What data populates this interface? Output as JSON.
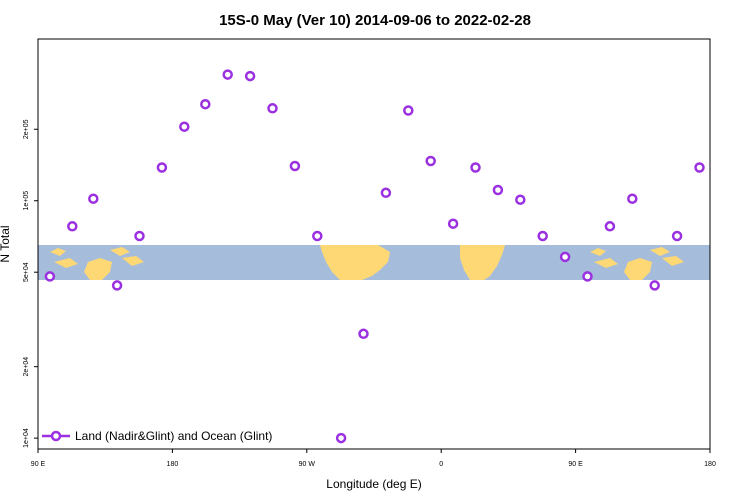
{
  "chart_data": {
    "type": "scatter",
    "title": "15S-0 May (Ver 10)   2014-09-06 to 2022-02-28",
    "xlabel": "Longitude (deg E)",
    "ylabel": "N Total",
    "x_ticks": [
      {
        "value": 90,
        "label": "90 E"
      },
      {
        "value": 180,
        "label": "180"
      },
      {
        "value": 270,
        "label": "90 W"
      },
      {
        "value": 360,
        "label": "0"
      },
      {
        "value": 450,
        "label": "90 E"
      },
      {
        "value": 540,
        "label": "180"
      }
    ],
    "y_ticks": [
      {
        "value": 10000,
        "label": "1e+04"
      },
      {
        "value": 20000,
        "label": "2e+04"
      },
      {
        "value": 50000,
        "label": "5e+04"
      },
      {
        "value": 100000,
        "label": "1e+05"
      },
      {
        "value": 200000,
        "label": "2e+05"
      }
    ],
    "xlim": [
      90,
      540
    ],
    "ylim": [
      9000,
      480000
    ],
    "y_scale": "log",
    "grid": false,
    "legend_position": "bottom-left",
    "series": [
      {
        "name": "Land (Nadir&Glint) and Ocean (Glint)",
        "color": "#9b30e0",
        "marker": "open-circle",
        "x": [
          98,
          113,
          127,
          143,
          158,
          173,
          188,
          202,
          217,
          232,
          247,
          262,
          277,
          293,
          308,
          323,
          338,
          353,
          368,
          383,
          398,
          413,
          428,
          443,
          458,
          473,
          488,
          503,
          518,
          533
        ],
        "y": [
          48000,
          78000,
          102000,
          44000,
          71000,
          138000,
          205000,
          255000,
          340000,
          335000,
          245000,
          140000,
          71000,
          10000,
          27500,
          108000,
          240000,
          147000,
          80000,
          138000,
          111000,
          101000,
          71000,
          58000,
          48000,
          78000,
          102000,
          44000,
          71000,
          138000
        ]
      }
    ],
    "map_band": {
      "ocean_color": "#a5bcdb",
      "land_color": "#fdd875",
      "lat_label": "15S-0"
    }
  }
}
